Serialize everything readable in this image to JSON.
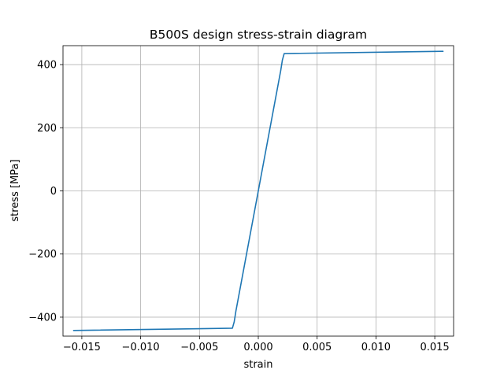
{
  "chart_data": {
    "type": "line",
    "title": "B500S design stress-strain diagram",
    "xlabel": "strain",
    "ylabel": "stress [MPa]",
    "xlim": [
      -0.0166,
      0.0166
    ],
    "ylim": [
      -460,
      460
    ],
    "xticks": [
      -0.015,
      -0.01,
      -0.005,
      0.0,
      0.005,
      0.01,
      0.015
    ],
    "xtick_labels": [
      "−0.015",
      "−0.010",
      "−0.005",
      "0.000",
      "0.005",
      "0.010",
      "0.015"
    ],
    "yticks": [
      -400,
      -200,
      0,
      200,
      400
    ],
    "ytick_labels": [
      "−400",
      "−200",
      "0",
      "200",
      "400"
    ],
    "grid": true,
    "legend": null,
    "series": [
      {
        "color": "#1f77b4",
        "x": [
          -0.0157,
          -0.0022,
          -0.00205,
          -0.0019,
          0.0,
          0.0019,
          0.00205,
          0.0022,
          0.0157
        ],
        "y": [
          -442,
          -435,
          -415,
          -380,
          0,
          380,
          415,
          435,
          442
        ]
      }
    ]
  }
}
